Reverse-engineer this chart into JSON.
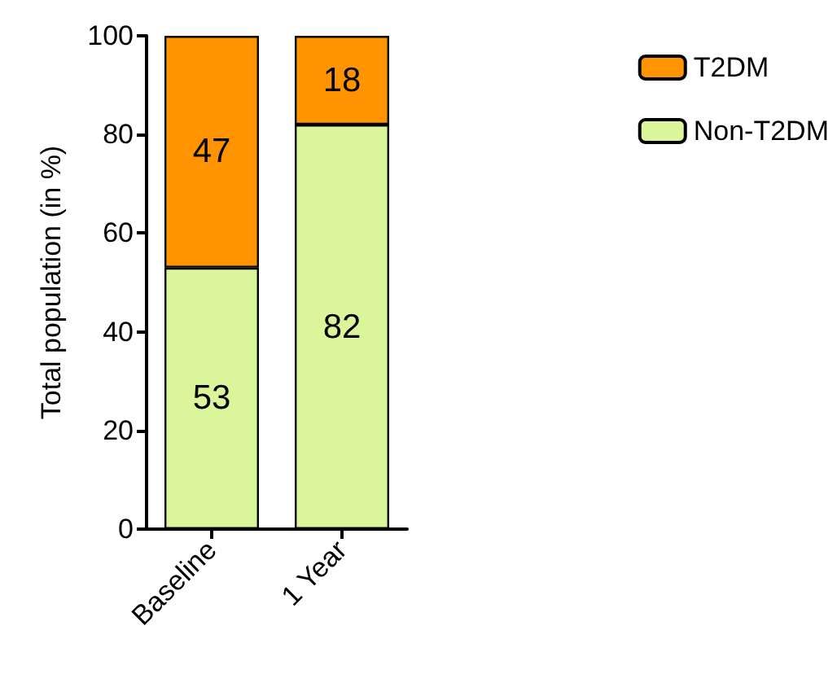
{
  "chart_data": {
    "type": "bar",
    "stacked": true,
    "ylabel": "Total population (in %)",
    "categories": [
      "Baseline",
      "1 Year"
    ],
    "series": [
      {
        "name": "Non-T2DM",
        "color": "#dbf59a",
        "values": [
          53,
          82
        ]
      },
      {
        "name": "T2DM",
        "color": "#ff9400",
        "values": [
          47,
          18
        ]
      }
    ],
    "ylim": [
      0,
      100
    ],
    "yticks": [
      0,
      20,
      40,
      60,
      80,
      100
    ],
    "grid": false,
    "legend": "top right",
    "data_labels": true
  }
}
